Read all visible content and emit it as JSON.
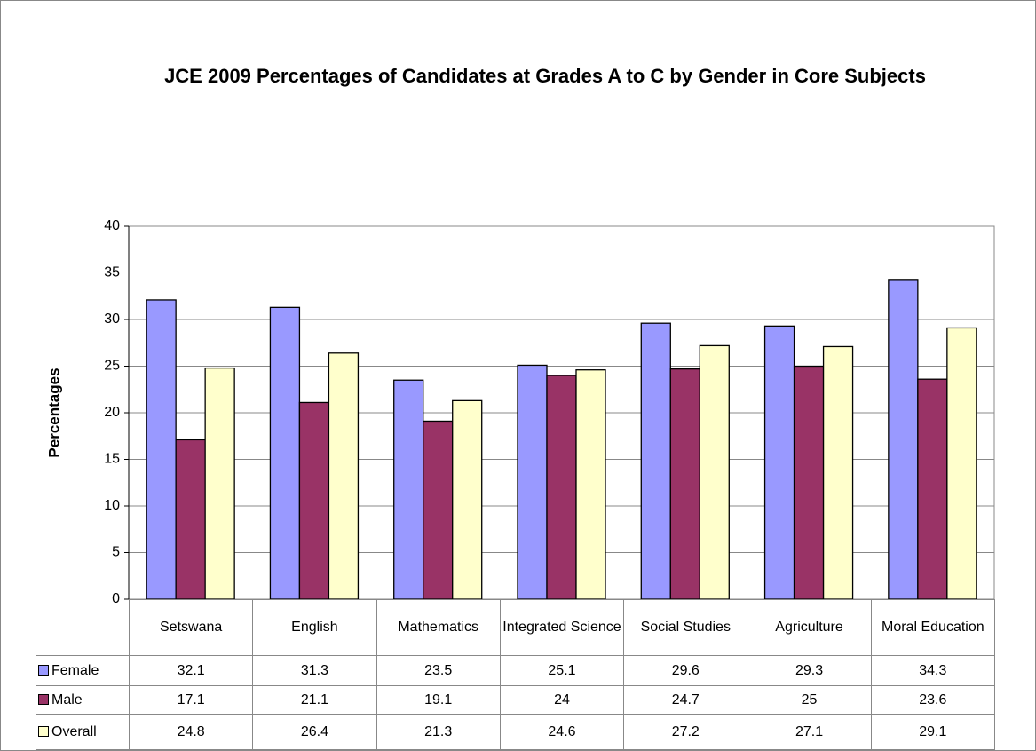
{
  "chart_data": {
    "type": "bar",
    "title": "JCE 2009 Percentages of Candidates at Grades A to C by Gender in Core Subjects",
    "y_label": "Percentages",
    "categories": [
      "Setswana",
      "English",
      "Mathematics",
      "Integrated Science",
      "Social Studies",
      "Agriculture",
      "Moral Education"
    ],
    "series": [
      {
        "name": "Female",
        "color": "#9999ff",
        "values": [
          32.1,
          31.3,
          23.5,
          25.1,
          29.6,
          29.3,
          34.3
        ]
      },
      {
        "name": "Male",
        "color": "#993366",
        "values": [
          17.1,
          21.1,
          19.1,
          24,
          24.7,
          25,
          23.6
        ]
      },
      {
        "name": "Overall",
        "color": "#ffffcc",
        "values": [
          24.8,
          26.4,
          21.3,
          24.6,
          27.2,
          27.1,
          29.1
        ]
      }
    ],
    "ylim": [
      0,
      40
    ],
    "yticks": [
      0,
      5,
      10,
      15,
      20,
      25,
      30,
      35,
      40
    ],
    "grid": true
  }
}
